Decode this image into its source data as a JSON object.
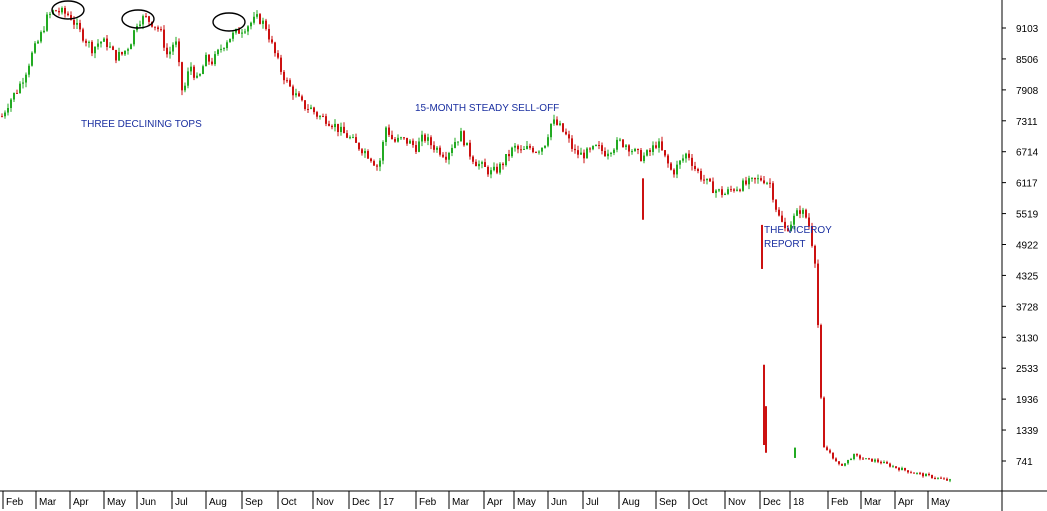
{
  "chart_data": {
    "type": "candlestick",
    "title": "",
    "xlabel": "",
    "ylabel": "",
    "ylim": [
      300,
      9700
    ],
    "y_ticks": [
      9103,
      8506,
      7908,
      7311,
      6714,
      6117,
      5519,
      4922,
      4325,
      3728,
      3130,
      2533,
      1936,
      1339,
      741
    ],
    "x_tick_labels": [
      "Feb",
      "Mar",
      "Apr",
      "May",
      "Jun",
      "Jul",
      "Aug",
      "Sep",
      "Oct",
      "Nov",
      "Dec",
      "17",
      "Feb",
      "Mar",
      "Apr",
      "May",
      "Jun",
      "Jul",
      "Aug",
      "Sep",
      "Oct",
      "Nov",
      "Dec",
      "18",
      "Feb",
      "Mar",
      "Apr",
      "May"
    ],
    "up_color": "#22aa22",
    "down_color": "#cc1111",
    "grid": false,
    "y_axis_position": "right",
    "series": [
      {
        "period": "weekly approx closes, Jan 2016 - May 2018",
        "close": [
          7400,
          7700,
          7900,
          8200,
          8600,
          8900,
          9300,
          9450,
          9400,
          9350,
          9100,
          8900,
          8700,
          8850,
          8800,
          8550,
          8600,
          8800,
          9250,
          9300,
          9200,
          9050,
          8550,
          8900,
          7800,
          8400,
          8050,
          8500,
          8450,
          8700,
          8900,
          9000,
          9100,
          9200,
          9300,
          9150,
          8700,
          8300,
          8000,
          7800,
          7600,
          7550,
          7400,
          7350,
          7250,
          7100,
          7000,
          6850,
          6750,
          6600,
          6400,
          7200,
          6900,
          6950,
          6900,
          6800,
          7000,
          6850,
          6750,
          6650,
          6900,
          7050,
          6700,
          6500,
          6400,
          6300,
          6400,
          6600,
          6800,
          6700,
          6800,
          6750,
          6850,
          7300,
          7200,
          7000,
          6700,
          6650,
          6700,
          6800,
          6700,
          6800,
          6900,
          6850,
          6700,
          6600,
          6700,
          6900,
          6600,
          6300,
          6500,
          6700,
          6400,
          6200,
          6050,
          5950,
          5900,
          6000,
          6050,
          6100,
          6150,
          6200,
          6100,
          5500,
          5200,
          5400,
          5600,
          5400,
          4600,
          1000,
          900,
          650,
          700,
          850,
          800,
          760,
          750,
          700,
          650,
          600,
          560,
          520,
          480,
          450,
          420,
          380,
          360
        ]
      }
    ],
    "annotations": [
      {
        "text": "THREE DECLINING TOPS"
      },
      {
        "text": "15-MONTH STEADY SELL-OFF"
      },
      {
        "text_lines": [
          "THE VICEROY",
          "REPORT"
        ]
      }
    ]
  }
}
